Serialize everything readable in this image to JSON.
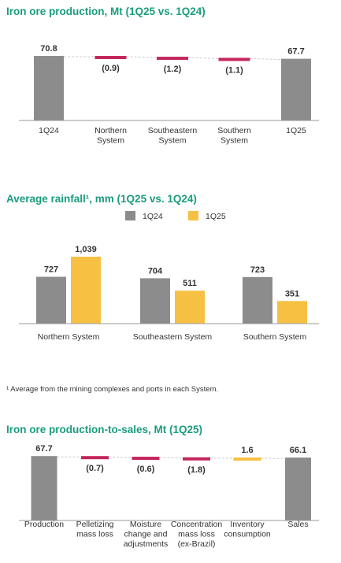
{
  "colors": {
    "title": "#1a9c7f",
    "gray": "#8c8c8c",
    "negative": "#c4265e",
    "yellow": "#f6c142",
    "axis": "#999999",
    "connector": "#cccccc",
    "text": "#333333"
  },
  "chart_data": [
    {
      "type": "waterfall",
      "title": "Iron ore production, Mt (1Q25 vs. 1Q24)",
      "categories": [
        "1Q24",
        "Northern System",
        "Southeastern System",
        "Southern System",
        "1Q25"
      ],
      "values": [
        70.8,
        -0.9,
        -1.2,
        -1.1,
        67.7
      ],
      "kinds": [
        "total",
        "delta",
        "delta",
        "delta",
        "total"
      ],
      "labels": [
        "70.8",
        "(0.9)",
        "(1.2)",
        "(1.1)",
        "67.7"
      ],
      "ylim": [
        0,
        76
      ]
    },
    {
      "type": "bar",
      "title": "Average rainfall¹, mm (1Q25 vs. 1Q24)",
      "categories": [
        "Northern System",
        "Southeastern System",
        "Southern System"
      ],
      "series": [
        {
          "name": "1Q24",
          "values": [
            727,
            704,
            723
          ],
          "labels": [
            "727",
            "704",
            "723"
          ]
        },
        {
          "name": "1Q25",
          "values": [
            1039,
            511,
            351
          ],
          "labels": [
            "1,039",
            "511",
            "351"
          ]
        }
      ],
      "legend": "top-center",
      "ylim": [
        0,
        1100
      ]
    },
    {
      "type": "waterfall",
      "title": "Iron ore production-to-sales, Mt (1Q25)",
      "categories": [
        "Production",
        "Pelletizing mass loss",
        "Moisture change and adjustments",
        "Concentration mass loss (ex-Brazil)",
        "Inventory consumption",
        "Sales"
      ],
      "values": [
        67.7,
        -0.7,
        -0.6,
        -1.8,
        1.6,
        66.1
      ],
      "kinds": [
        "total",
        "delta",
        "delta",
        "delta",
        "delta",
        "total"
      ],
      "labels": [
        "67.7",
        "(0.7)",
        "(0.6)",
        "(1.8)",
        "1.6",
        "66.1"
      ],
      "ylim": [
        0,
        72
      ]
    }
  ],
  "footnote": "¹ Average from the mining complexes and ports in each System."
}
